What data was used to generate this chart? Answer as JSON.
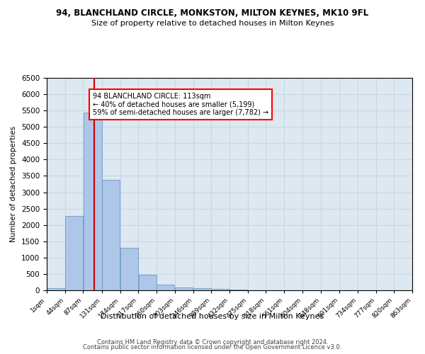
{
  "title": "94, BLANCHLAND CIRCLE, MONKSTON, MILTON KEYNES, MK10 9FL",
  "subtitle": "Size of property relative to detached houses in Milton Keynes",
  "xlabel": "Distribution of detached houses by size in Milton Keynes",
  "ylabel": "Number of detached properties",
  "footer_line1": "Contains HM Land Registry data © Crown copyright and database right 2024.",
  "footer_line2": "Contains public sector information licensed under the Open Government Licence v3.0.",
  "annotation_line1": "94 BLANCHLAND CIRCLE: 113sqm",
  "annotation_line2": "← 40% of detached houses are smaller (5,199)",
  "annotation_line3": "59% of semi-detached houses are larger (7,782) →",
  "bar_color": "#aec6e8",
  "bar_edge_color": "#5a8fc2",
  "grid_color": "#c8d8e8",
  "background_color": "#dde8f0",
  "vline_color": "#cc0000",
  "vline_x": 113,
  "bin_edges": [
    1,
    44,
    87,
    131,
    174,
    217,
    260,
    303,
    346,
    389,
    432,
    475,
    518,
    561,
    604,
    648,
    691,
    734,
    777,
    820,
    863
  ],
  "bar_heights": [
    75,
    2280,
    5430,
    3380,
    1310,
    480,
    165,
    80,
    55,
    35,
    20,
    10,
    5,
    5,
    3,
    2,
    1,
    1,
    1,
    1
  ],
  "ylim": [
    0,
    6500
  ],
  "yticks": [
    0,
    500,
    1000,
    1500,
    2000,
    2500,
    3000,
    3500,
    4000,
    4500,
    5000,
    5500,
    6000,
    6500
  ]
}
